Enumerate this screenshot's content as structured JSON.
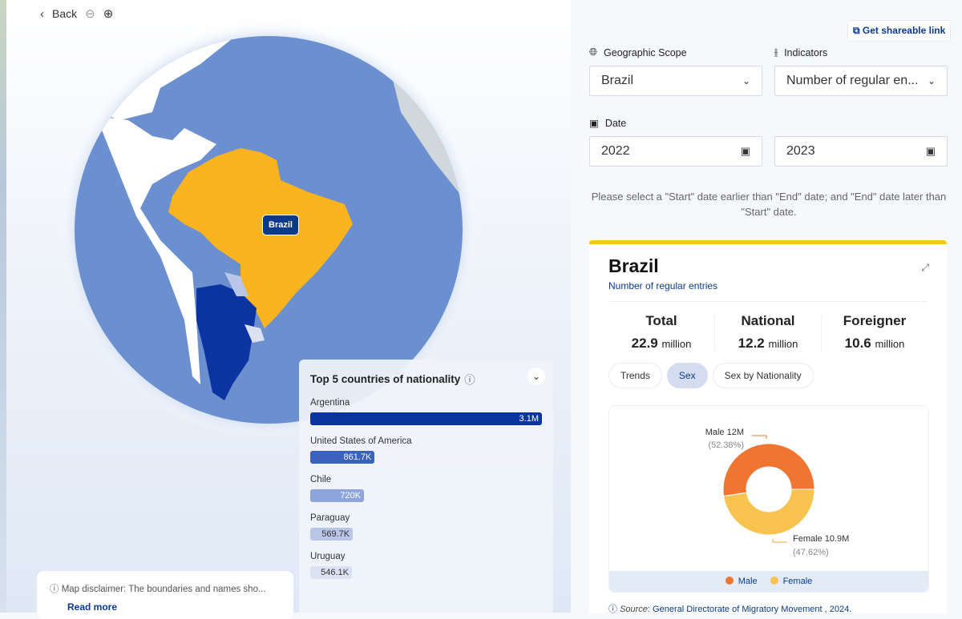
{
  "toolbar": {
    "back_label": "Back"
  },
  "map": {
    "selected_label": "Brazil",
    "colors": {
      "ocean": "#6b8fcf",
      "selected": "#fbb41f",
      "top": "#0b3aa0",
      "land": "#ffffff"
    }
  },
  "top5": {
    "title": "Top 5 countries of nationality",
    "items": [
      {
        "country": "Argentina",
        "value": 3100000,
        "label": "3.1M",
        "color": "#0b34a0"
      },
      {
        "country": "United States of America",
        "value": 861700,
        "label": "861.7K",
        "color": "#3b62c0"
      },
      {
        "country": "Chile",
        "value": 720000,
        "label": "720K",
        "color": "#8ea4da"
      },
      {
        "country": "Paraguay",
        "value": 569700,
        "label": "569.7K",
        "color": "#b9c6e7"
      },
      {
        "country": "Uruguay",
        "value": 546100,
        "label": "546.1K",
        "color": "#dbe2f2"
      }
    ]
  },
  "disclaimer": {
    "text": "Map disclaimer: The boundaries and names sho...",
    "read_more": "Read more"
  },
  "share": {
    "label": "Get shareable link"
  },
  "filters": {
    "scope_label": "Geographic Scope",
    "scope_value": "Brazil",
    "indicators_label": "Indicators",
    "indicator_value": "Number of regular en...",
    "date_label": "Date",
    "start": "2022",
    "end": "2023",
    "warning": "Please select a \"Start\" date earlier than \"End\" date; and \"End\" date later than \"Start\" date."
  },
  "card": {
    "title": "Brazil",
    "subtitle": "Number of regular entries",
    "stats": [
      {
        "label": "Total",
        "value": "22.9",
        "unit": "million"
      },
      {
        "label": "National",
        "value": "12.2",
        "unit": "million"
      },
      {
        "label": "Foreigner",
        "value": "10.6",
        "unit": "million"
      }
    ],
    "tabs": [
      "Trends",
      "Sex",
      "Sex by Nationality"
    ],
    "active_tab": "Sex",
    "source_label": "Source",
    "source_text": "General Directorate of Migratory Movement , 2024."
  },
  "chart_data": {
    "type": "pie",
    "donut": true,
    "categories": [
      "Male",
      "Female"
    ],
    "values": [
      12000000,
      10900000
    ],
    "percentages": [
      52.38,
      47.62
    ],
    "labels": [
      "Male 12M",
      "Female 10.9M"
    ],
    "pct_labels": [
      "(52.38%)",
      "(47.62%)"
    ],
    "colors": [
      "#f07530",
      "#f9c34f"
    ],
    "legend": "bottom"
  }
}
